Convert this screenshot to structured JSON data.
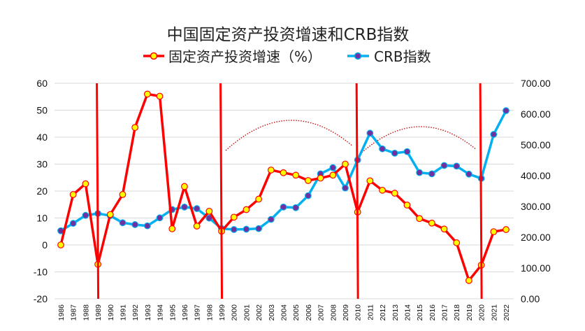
{
  "chart_data": {
    "type": "line",
    "title": "中国固定资产投资增速和CRB指数",
    "legend_position": "top",
    "grid": true,
    "categories": [
      "1986",
      "1987",
      "1988",
      "1989",
      "1990",
      "1991",
      "1992",
      "1993",
      "1994",
      "1995",
      "1996",
      "1997",
      "1998",
      "1999",
      "2000",
      "2001",
      "2002",
      "2003",
      "2004",
      "2005",
      "2006",
      "2007",
      "2008",
      "2009",
      "2010",
      "2011",
      "2012",
      "2013",
      "2014",
      "2015",
      "2016",
      "2017",
      "2018",
      "2019",
      "2020",
      "2021",
      "2022"
    ],
    "y_left": {
      "min": -20,
      "max": 60,
      "ticks": [
        "-20",
        "-10",
        "0",
        "10",
        "20",
        "30",
        "40",
        "50",
        "60"
      ]
    },
    "y_right": {
      "min": 0,
      "max": 700,
      "ticks": [
        "0.00",
        "100.00",
        "200.00",
        "300.00",
        "400.00",
        "500.00",
        "600.00",
        "700.00"
      ]
    },
    "series": [
      {
        "name": "固定资产投资增速（%）",
        "axis": "left",
        "color": "#ff0000",
        "marker_color": "#ffff00",
        "values": [
          0,
          18.7,
          22.7,
          -7.2,
          11.3,
          18.7,
          43.6,
          56.0,
          55.2,
          6.0,
          21.7,
          7.0,
          12.5,
          5.1,
          10.3,
          13.1,
          17.0,
          27.8,
          26.8,
          25.9,
          23.9,
          24.8,
          25.9,
          30.0,
          12.2,
          23.8,
          20.3,
          19.2,
          14.8,
          9.8,
          8.1,
          5.9,
          0.8,
          -13.2,
          -7.5,
          4.9,
          5.7
        ]
      },
      {
        "name": "CRB指数",
        "axis": "right",
        "color": "#00b0f0",
        "marker_color": "#7030a0",
        "values": [
          221,
          245,
          271,
          277,
          270,
          247,
          241,
          237,
          263,
          290,
          298,
          293,
          262,
          228,
          225,
          226,
          228,
          258,
          298,
          296,
          335,
          406,
          426,
          360,
          451,
          538,
          487,
          473,
          478,
          410,
          406,
          433,
          431,
          405,
          391,
          534,
          611
        ]
      }
    ],
    "annotations": {
      "vertical_markers": [
        "1989",
        "1999",
        "2010",
        "2020"
      ],
      "marker_color": "#ff0000",
      "dotted_arcs": [
        [
          "1999",
          "2010"
        ],
        [
          "2010",
          "2020"
        ]
      ],
      "arc_color": "#c00000"
    }
  }
}
